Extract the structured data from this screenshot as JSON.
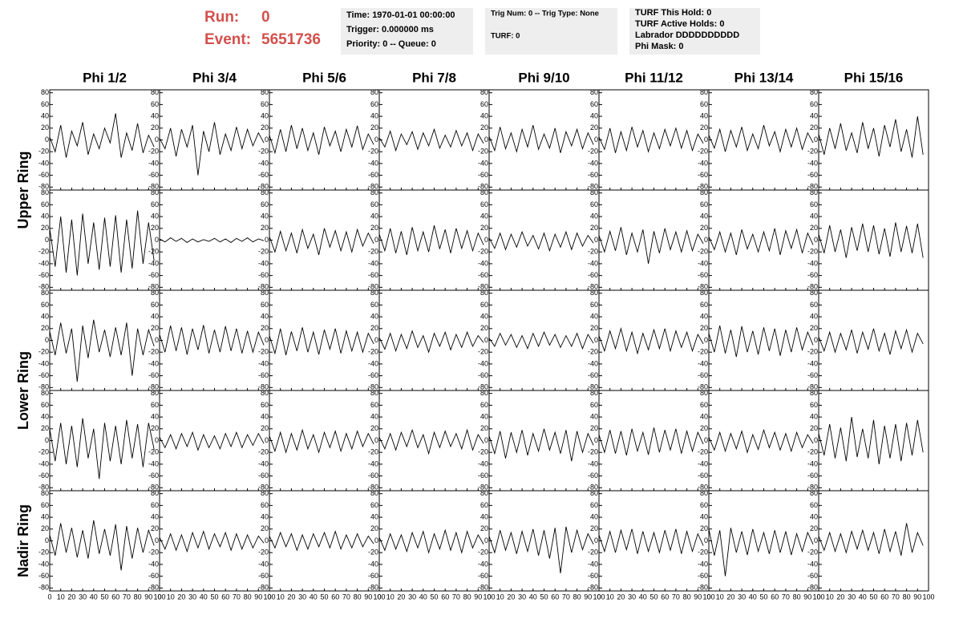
{
  "header": {
    "run_label": "Run:",
    "run": "0",
    "event_label": "Event:",
    "event": "5651736",
    "box1": [
      "Time: 1970-01-01 00:00:00",
      "Trigger: 0.000000 ms",
      "Priority: 0 -- Queue: 0"
    ],
    "box2": [
      "Trig Num: 0 -- Trig Type: None",
      "TURF: 0"
    ],
    "box3": [
      "TURF This Hold: 0",
      "TURF Active Holds: 0",
      "Labrador DDDDDDDDDD",
      "Phi Mask: 0"
    ]
  },
  "chart_data": {
    "type": "line",
    "columns": [
      "Phi 1/2",
      "Phi 3/4",
      "Phi 5/6",
      "Phi 7/8",
      "Phi 9/10",
      "Phi 11/12",
      "Phi 13/14",
      "Phi 15/16"
    ],
    "row_labels": [
      "Upper Ring",
      "Lower Ring",
      "Nadir Ring"
    ],
    "xlim": [
      0,
      100
    ],
    "xticks": [
      0,
      10,
      20,
      30,
      40,
      50,
      60,
      70,
      80,
      90,
      100
    ],
    "ylim": [
      -85,
      85
    ],
    "yticks": [
      -80,
      -60,
      -40,
      -20,
      0,
      20,
      40,
      60,
      80
    ],
    "color": "#000000",
    "x": [
      0,
      5,
      10,
      15,
      20,
      25,
      30,
      35,
      40,
      45,
      50,
      55,
      60,
      65,
      70,
      75,
      80,
      85,
      90,
      95
    ],
    "waveforms": [
      [
        [
          5,
          -20,
          25,
          -30,
          15,
          -10,
          30,
          -25,
          10,
          -15,
          20,
          -5,
          45,
          -30,
          12,
          -18,
          28,
          -22,
          8,
          -12
        ],
        [
          3,
          -15,
          20,
          -28,
          18,
          -12,
          25,
          -60,
          15,
          -20,
          30,
          -25,
          10,
          -18,
          22,
          -15,
          18,
          -10,
          12,
          -5
        ],
        [
          8,
          -22,
          18,
          -20,
          25,
          -15,
          20,
          -18,
          12,
          -25,
          22,
          -10,
          15,
          -20,
          18,
          -12,
          24,
          -16,
          10,
          -8
        ],
        [
          4,
          -12,
          15,
          -18,
          10,
          -8,
          14,
          -16,
          12,
          -10,
          18,
          -14,
          8,
          -12,
          16,
          -10,
          12,
          -18,
          10,
          -6
        ],
        [
          6,
          -18,
          22,
          -15,
          12,
          -20,
          18,
          -12,
          25,
          -16,
          10,
          -14,
          20,
          -22,
          14,
          -10,
          18,
          -15,
          12,
          -8
        ],
        [
          5,
          -16,
          20,
          -22,
          14,
          -18,
          22,
          -12,
          16,
          -20,
          12,
          -15,
          18,
          -10,
          20,
          -14,
          16,
          -18,
          10,
          -6
        ],
        [
          8,
          -14,
          18,
          -20,
          16,
          -12,
          22,
          -18,
          10,
          -15,
          25,
          -10,
          14,
          -20,
          18,
          -12,
          20,
          -16,
          12,
          -5
        ],
        [
          10,
          -25,
          20,
          -15,
          28,
          -18,
          12,
          -22,
          30,
          -15,
          20,
          -28,
          25,
          -12,
          35,
          -20,
          18,
          -30,
          40,
          -25
        ]
      ],
      [
        [
          20,
          -45,
          40,
          -55,
          35,
          -60,
          45,
          -40,
          30,
          -50,
          38,
          -45,
          42,
          -55,
          35,
          -48,
          50,
          -40,
          30,
          -35
        ],
        [
          2,
          -3,
          4,
          -2,
          3,
          -4,
          2,
          -3,
          1,
          -2,
          3,
          -3,
          2,
          -4,
          3,
          -2,
          4,
          -3,
          2,
          -1
        ],
        [
          6,
          -20,
          15,
          -18,
          12,
          -22,
          18,
          -14,
          10,
          -25,
          20,
          -12,
          16,
          -18,
          14,
          -20,
          18,
          -10,
          12,
          -6
        ],
        [
          10,
          -18,
          20,
          -22,
          15,
          -25,
          22,
          -18,
          14,
          -20,
          25,
          -15,
          18,
          -22,
          20,
          -14,
          16,
          -18,
          12,
          -8
        ],
        [
          4,
          -14,
          12,
          -16,
          10,
          -12,
          14,
          -10,
          8,
          -15,
          12,
          -18,
          10,
          -12,
          14,
          -16,
          12,
          -10,
          8,
          -5
        ],
        [
          8,
          -20,
          15,
          -18,
          22,
          -25,
          12,
          -20,
          18,
          -40,
          15,
          -22,
          20,
          -16,
          14,
          -20,
          16,
          -18,
          10,
          -6
        ],
        [
          6,
          -16,
          14,
          -20,
          12,
          -25,
          18,
          -15,
          10,
          -20,
          14,
          -18,
          20,
          -25,
          16,
          -14,
          18,
          -22,
          12,
          -8
        ],
        [
          10,
          -22,
          25,
          -20,
          18,
          -30,
          22,
          -18,
          28,
          -20,
          25,
          -24,
          20,
          -28,
          30,
          -20,
          24,
          -22,
          28,
          -30
        ]
      ],
      [
        [
          15,
          -25,
          30,
          -22,
          20,
          -70,
          25,
          -30,
          35,
          -20,
          18,
          -28,
          22,
          -25,
          30,
          -60,
          20,
          -25,
          18,
          -10
        ],
        [
          10,
          -20,
          25,
          -18,
          22,
          -24,
          20,
          -16,
          26,
          -22,
          18,
          -20,
          24,
          -18,
          20,
          -22,
          16,
          -20,
          14,
          -8
        ],
        [
          8,
          -22,
          20,
          -25,
          15,
          -18,
          22,
          -20,
          14,
          -24,
          18,
          -15,
          20,
          -22,
          16,
          -18,
          14,
          -20,
          12,
          -6
        ],
        [
          5,
          -15,
          12,
          -18,
          10,
          -14,
          16,
          -12,
          8,
          -20,
          12,
          -10,
          14,
          -16,
          10,
          -12,
          14,
          -10,
          8,
          -4
        ],
        [
          4,
          -10,
          12,
          -8,
          10,
          -12,
          8,
          -14,
          12,
          -10,
          14,
          -8,
          10,
          -12,
          8,
          -10,
          12,
          -14,
          10,
          -5
        ],
        [
          8,
          -18,
          16,
          -14,
          20,
          -18,
          14,
          -22,
          12,
          -16,
          18,
          -14,
          20,
          -18,
          16,
          -12,
          14,
          -18,
          10,
          -6
        ],
        [
          12,
          -20,
          25,
          -22,
          18,
          -28,
          24,
          -20,
          16,
          -24,
          22,
          -18,
          20,
          -26,
          18,
          -20,
          22,
          -16,
          14,
          -8
        ],
        [
          6,
          -18,
          14,
          -20,
          12,
          -16,
          18,
          -22,
          14,
          -15,
          20,
          -18,
          12,
          -24,
          16,
          -14,
          18,
          -20,
          12,
          -6
        ]
      ],
      [
        [
          20,
          -35,
          30,
          -40,
          25,
          -45,
          38,
          -30,
          20,
          -65,
          30,
          -35,
          25,
          -40,
          35,
          -30,
          28,
          -45,
          30,
          -15
        ],
        [
          6,
          -12,
          10,
          -14,
          12,
          -10,
          14,
          -16,
          10,
          -12,
          8,
          -14,
          12,
          -10,
          14,
          -12,
          10,
          -8,
          12,
          -5
        ],
        [
          8,
          -18,
          14,
          -20,
          12,
          -16,
          18,
          -14,
          10,
          -20,
          14,
          -12,
          16,
          -18,
          12,
          -14,
          16,
          -10,
          12,
          -6
        ],
        [
          6,
          -14,
          12,
          -16,
          14,
          -10,
          18,
          -12,
          10,
          -22,
          14,
          -12,
          16,
          -10,
          12,
          -14,
          18,
          -16,
          10,
          -5
        ],
        [
          8,
          -22,
          16,
          -30,
          14,
          -20,
          18,
          -25,
          12,
          -18,
          20,
          -16,
          14,
          -22,
          18,
          -35,
          16,
          -20,
          12,
          -8
        ],
        [
          10,
          -20,
          18,
          -22,
          16,
          -25,
          20,
          -18,
          14,
          -24,
          22,
          -20,
          18,
          -16,
          20,
          -22,
          16,
          -18,
          14,
          -6
        ],
        [
          6,
          -16,
          14,
          -18,
          12,
          -14,
          16,
          -20,
          10,
          -15,
          18,
          -12,
          14,
          -16,
          12,
          -18,
          14,
          -12,
          10,
          -5
        ],
        [
          12,
          -25,
          28,
          -30,
          22,
          -35,
          40,
          -28,
          20,
          -30,
          35,
          -40,
          25,
          -30,
          28,
          -35,
          30,
          -25,
          35,
          -20
        ]
      ],
      [
        [
          10,
          -25,
          30,
          -20,
          22,
          -28,
          18,
          -30,
          35,
          -22,
          20,
          -25,
          28,
          -50,
          25,
          -30,
          22,
          -20,
          18,
          -8
        ],
        [
          6,
          -14,
          12,
          -16,
          10,
          -18,
          14,
          -12,
          16,
          -14,
          12,
          -10,
          14,
          -16,
          12,
          -14,
          10,
          -12,
          8,
          -4
        ],
        [
          8,
          -12,
          14,
          -10,
          12,
          -16,
          10,
          -14,
          12,
          -10,
          14,
          -12,
          16,
          -14,
          10,
          -12,
          12,
          -10,
          8,
          -5
        ],
        [
          6,
          -16,
          12,
          -14,
          10,
          -18,
          14,
          -12,
          16,
          -20,
          12,
          -14,
          18,
          -16,
          14,
          -20,
          16,
          -12,
          10,
          -6
        ],
        [
          8,
          -20,
          18,
          -16,
          14,
          -22,
          16,
          -18,
          20,
          -25,
          18,
          -30,
          22,
          -55,
          24,
          -20,
          18,
          -15,
          12,
          -6
        ],
        [
          10,
          -18,
          16,
          -20,
          18,
          -15,
          20,
          -22,
          16,
          -18,
          14,
          -20,
          18,
          -16,
          20,
          -22,
          16,
          -18,
          12,
          -8
        ],
        [
          20,
          -25,
          18,
          -60,
          22,
          -20,
          16,
          -24,
          20,
          -18,
          14,
          -22,
          18,
          -20,
          16,
          -24,
          12,
          -18,
          14,
          -6
        ],
        [
          8,
          -16,
          14,
          -18,
          12,
          -20,
          16,
          -14,
          18,
          -16,
          14,
          -22,
          20,
          -18,
          16,
          -25,
          30,
          -20,
          14,
          -8
        ]
      ]
    ]
  }
}
